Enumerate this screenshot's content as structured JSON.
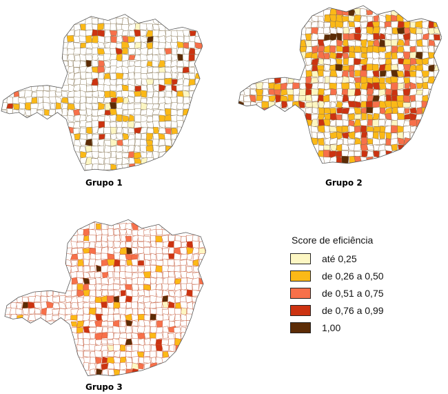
{
  "maps": [
    {
      "caption": "Grupo 1"
    },
    {
      "caption": "Grupo 2"
    },
    {
      "caption": "Grupo 3"
    }
  ],
  "legend": {
    "title": "Score de eficiência",
    "classes": [
      {
        "label": "até 0,25",
        "color": "#fdf7c3"
      },
      {
        "label": "de 0,26 a 0,50",
        "color": "#fbb917"
      },
      {
        "label": "de 0,51 a 0,75",
        "color": "#f7704a"
      },
      {
        "label": "de 0,76 a 0,99",
        "color": "#cc3311"
      },
      {
        "label": "1,00",
        "color": "#5c2c06"
      }
    ]
  }
}
